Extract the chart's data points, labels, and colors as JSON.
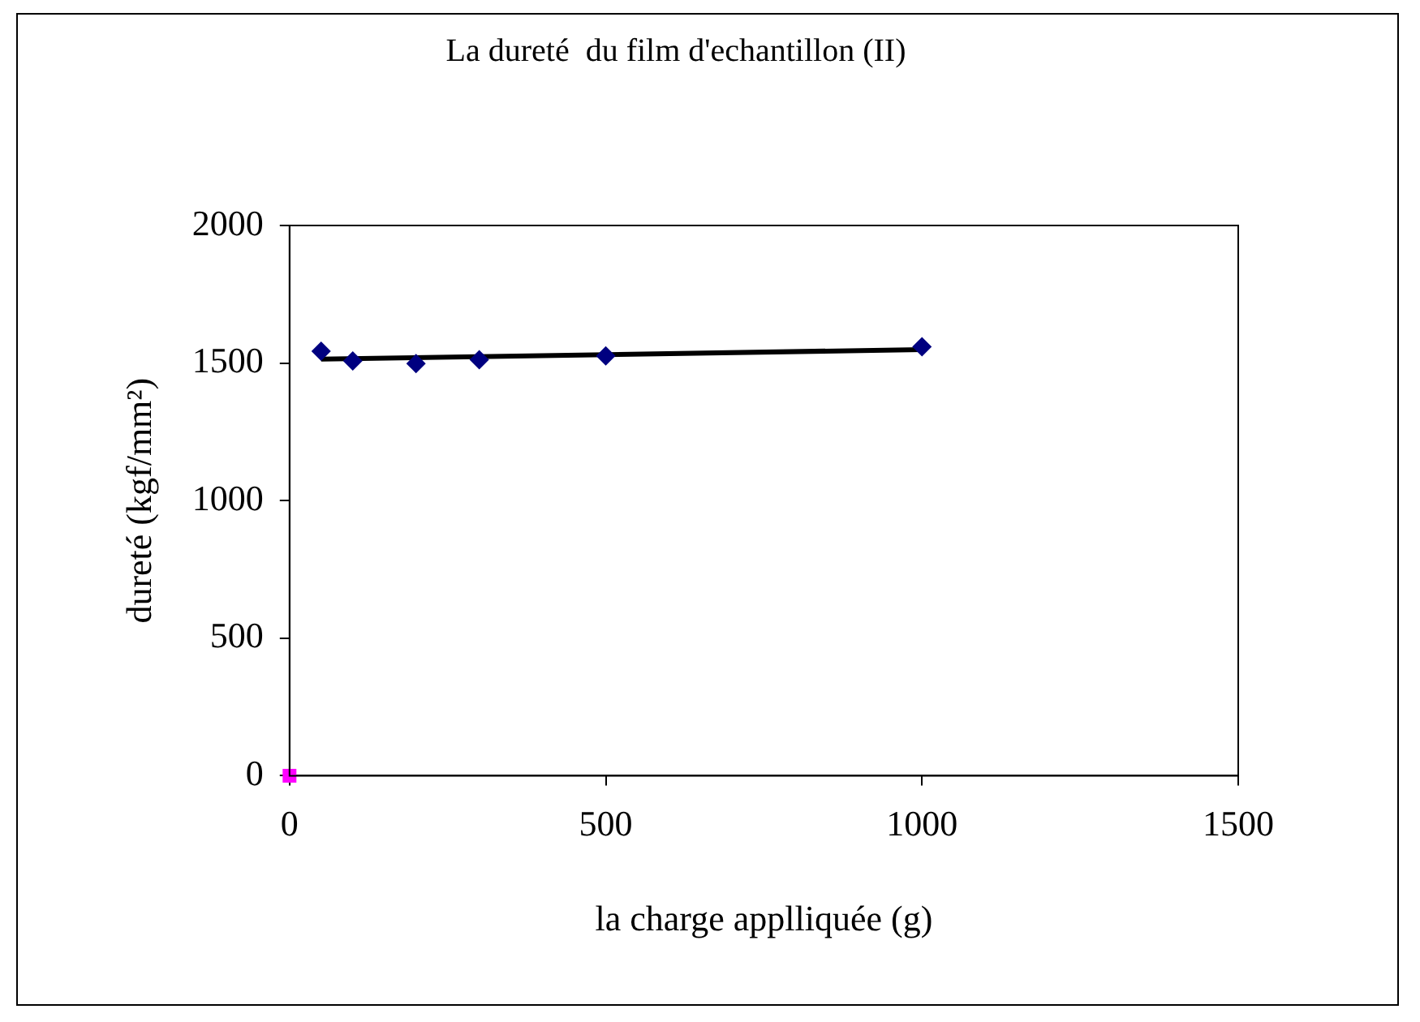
{
  "chart_data": {
    "type": "scatter",
    "title": "La dureté  du film d'echantillon (II)",
    "xlabel": "la charge applliquée (g)",
    "ylabel": "dureté (kgf/mm²)",
    "xlim": [
      0,
      1500
    ],
    "xticks": [
      0,
      500,
      1000,
      1500
    ],
    "ylim": [
      0,
      2000
    ],
    "yticks": [
      0,
      500,
      1000,
      1500,
      2000
    ],
    "grid": false,
    "legend": false,
    "series": [
      {
        "type": "scatter",
        "marker": "diamond",
        "color": "#000080",
        "x": [
          50,
          100,
          200,
          300,
          500,
          1000
        ],
        "values": [
          1543,
          1508,
          1498,
          1512,
          1526,
          1559
        ]
      },
      {
        "type": "line",
        "marker": "none",
        "color": "#000000",
        "x": [
          50,
          1000
        ],
        "values": [
          1514,
          1549
        ]
      },
      {
        "type": "scatter",
        "marker": "square",
        "color": "#ff00ff",
        "x": [
          0
        ],
        "values": [
          0
        ]
      }
    ]
  }
}
